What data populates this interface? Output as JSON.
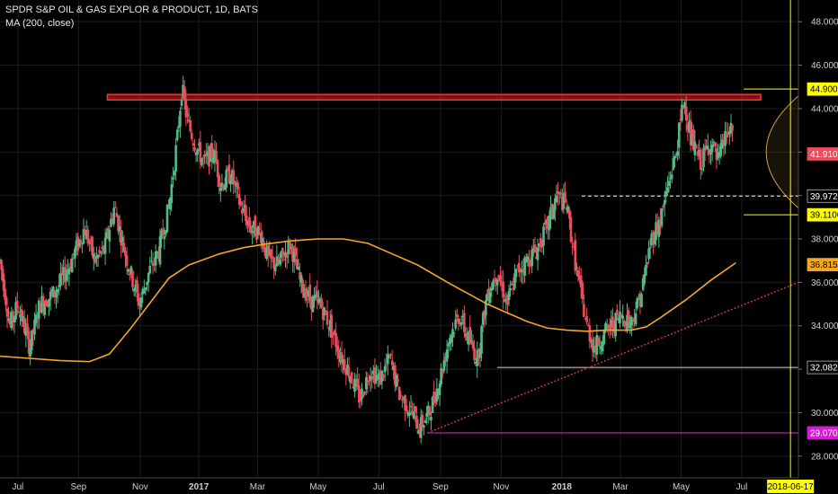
{
  "legend": {
    "title": "SPDR S&P OIL & GAS EXPLOR & PRODUCT, 1D, BATS",
    "indicator": "MA (200, close)"
  },
  "colors": {
    "background": "#000000",
    "grid": "#1c1c1c",
    "up": "#53b987",
    "down": "#eb4d5c",
    "ma": "#f5a623",
    "resistance": "#cc1f1f",
    "trend": "#c23b3b",
    "support_magenta": "#d01ed0",
    "support_white": "#d9d9d9",
    "yellow": "#ffff00",
    "projection": "#c8a050"
  },
  "chart_data": {
    "type": "candlestick",
    "symbol": "SPDR S&P OIL & GAS EXPLOR & PRODUCT",
    "interval": "1D",
    "exchange": "BATS",
    "ylim": [
      27.0,
      49.0
    ],
    "y_ticks": [
      "28.0000",
      "30.0000",
      "32.0000",
      "34.0000",
      "36.0000",
      "38.0000",
      "40.0000",
      "42.0000",
      "44.0000",
      "46.0000",
      "48.0000"
    ],
    "x_ticks": [
      "Jul",
      "Sep",
      "Nov",
      "2017",
      "Mar",
      "May",
      "Jul",
      "Sep",
      "Nov",
      "2018",
      "Mar",
      "May",
      "Jul"
    ],
    "x_tick_days": [
      18,
      79,
      141,
      200,
      259,
      320,
      381,
      443,
      504,
      565,
      624,
      685,
      746
    ],
    "x_range_days": [
      0,
      803
    ],
    "close_path": [
      [
        0,
        37
      ],
      [
        10,
        34
      ],
      [
        18,
        35
      ],
      [
        30,
        33
      ],
      [
        40,
        35
      ],
      [
        55,
        35.5
      ],
      [
        70,
        36.8
      ],
      [
        85,
        38.5
      ],
      [
        95,
        37
      ],
      [
        105,
        37.5
      ],
      [
        115,
        39.5
      ],
      [
        125,
        37.5
      ],
      [
        140,
        35
      ],
      [
        150,
        36.5
      ],
      [
        160,
        37.5
      ],
      [
        170,
        39.5
      ],
      [
        178,
        42.5
      ],
      [
        183,
        45
      ],
      [
        188,
        43.5
      ],
      [
        195,
        42.5
      ],
      [
        205,
        41.5
      ],
      [
        215,
        42
      ],
      [
        222,
        40.5
      ],
      [
        232,
        41
      ],
      [
        242,
        39.5
      ],
      [
        252,
        38.5
      ],
      [
        262,
        38.3
      ],
      [
        270,
        37
      ],
      [
        280,
        36.8
      ],
      [
        292,
        37.8
      ],
      [
        302,
        36
      ],
      [
        312,
        35.2
      ],
      [
        322,
        35
      ],
      [
        332,
        34
      ],
      [
        342,
        32.7
      ],
      [
        352,
        31.8
      ],
      [
        362,
        30.6
      ],
      [
        372,
        32
      ],
      [
        382,
        31.5
      ],
      [
        392,
        32.5
      ],
      [
        402,
        30.8
      ],
      [
        412,
        30.2
      ],
      [
        422,
        29.3
      ],
      [
        432,
        30
      ],
      [
        442,
        31.5
      ],
      [
        452,
        33.5
      ],
      [
        462,
        34.5
      ],
      [
        470,
        33.5
      ],
      [
        480,
        32.5
      ],
      [
        490,
        35.5
      ],
      [
        500,
        36.5
      ],
      [
        510,
        35
      ],
      [
        520,
        36.5
      ],
      [
        530,
        37
      ],
      [
        540,
        37.5
      ],
      [
        550,
        38.5
      ],
      [
        560,
        40
      ],
      [
        570,
        39.5
      ],
      [
        580,
        36.5
      ],
      [
        590,
        34
      ],
      [
        598,
        33
      ],
      [
        605,
        33.5
      ],
      [
        615,
        34
      ],
      [
        625,
        34.5
      ],
      [
        635,
        34.2
      ],
      [
        645,
        35.5
      ],
      [
        655,
        38
      ],
      [
        665,
        39
      ],
      [
        672,
        40.5
      ],
      [
        680,
        42
      ],
      [
        688,
        44.5
      ],
      [
        695,
        42.5
      ],
      [
        705,
        41.5
      ],
      [
        715,
        42.5
      ],
      [
        722,
        41.5
      ],
      [
        730,
        42.8
      ],
      [
        738,
        43
      ]
    ],
    "ma200": {
      "name": "MA (200, close)",
      "points": [
        [
          0,
          32.6
        ],
        [
          30,
          32.5
        ],
        [
          60,
          32.4
        ],
        [
          90,
          32.35
        ],
        [
          110,
          32.7
        ],
        [
          130,
          33.8
        ],
        [
          150,
          35
        ],
        [
          170,
          36.2
        ],
        [
          190,
          36.8
        ],
        [
          220,
          37.3
        ],
        [
          245,
          37.6
        ],
        [
          265,
          37.75
        ],
        [
          290,
          37.9
        ],
        [
          320,
          38
        ],
        [
          345,
          38
        ],
        [
          370,
          37.8
        ],
        [
          395,
          37.3
        ],
        [
          420,
          36.8
        ],
        [
          450,
          36
        ],
        [
          470,
          35.5
        ],
        [
          490,
          35
        ],
        [
          510,
          34.6
        ],
        [
          530,
          34.2
        ],
        [
          550,
          33.9
        ],
        [
          570,
          33.8
        ],
        [
          590,
          33.75
        ],
        [
          610,
          33.8
        ],
        [
          635,
          33.8
        ],
        [
          650,
          33.95
        ],
        [
          665,
          34.4
        ],
        [
          690,
          35.2
        ],
        [
          715,
          36.1
        ],
        [
          740,
          36.9
        ]
      ]
    },
    "price_tags": [
      {
        "label": "44.9000",
        "value": 44.9,
        "bg": "#ffff00",
        "fg": "#000000"
      },
      {
        "label": "41.9100",
        "value": 41.91,
        "bg": "#eb4d5c",
        "fg": "#ffffff"
      },
      {
        "label": "39.9727",
        "value": 39.9727,
        "bg": "#000000",
        "fg": "#ffffff"
      },
      {
        "label": "39.1100",
        "value": 39.11,
        "bg": "#ffff00",
        "fg": "#000000"
      },
      {
        "label": "36.8151",
        "value": 36.8151,
        "bg": "#f5a623",
        "fg": "#000000"
      },
      {
        "label": "32.0824",
        "value": 32.0824,
        "bg": "#000000",
        "fg": "#ffffff"
      },
      {
        "label": "29.0706",
        "value": 29.0706,
        "bg": "#d01ed0",
        "fg": "#ffffff"
      }
    ],
    "date_tag": {
      "label": "2018-06-17",
      "day": 795
    },
    "drawings": {
      "resistance_band": {
        "x1": 108,
        "x2": 765,
        "y_low": 44.4,
        "y_high": 44.65
      },
      "trend_line": {
        "x1": 430,
        "y1": 29.0706,
        "x2": 803,
        "y2": 36.0
      },
      "support_magenta": {
        "x1": 430,
        "x2": 803,
        "y": 29.0706
      },
      "support_white": {
        "x1": 500,
        "x2": 803,
        "y": 32.0824
      },
      "dashed_level": {
        "x1": 585,
        "x2": 803,
        "y": 39.9727
      },
      "yellow_top": {
        "x1": 748,
        "x2": 803,
        "y": 44.9
      },
      "yellow_bottom": {
        "x1": 748,
        "x2": 803,
        "y": 39.11
      }
    }
  }
}
